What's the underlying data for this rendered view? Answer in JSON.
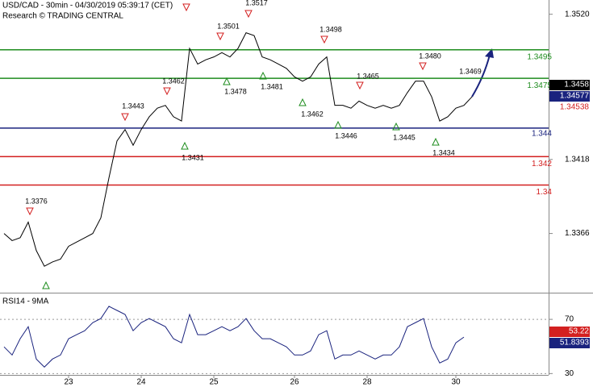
{
  "title": "USD/CAD - 30min - 04/30/2019 05:39:17 (CET)",
  "subtitle": "Research © TRADING CENTRAL",
  "chart_data": [
    {
      "type": "line",
      "color": "#000000",
      "categories": [
        null,
        null,
        null,
        null,
        null,
        null,
        null,
        null,
        "23",
        null,
        null,
        null,
        null,
        null,
        null,
        null,
        null,
        "24",
        null,
        null,
        null,
        null,
        null,
        null,
        null,
        null,
        "25",
        null,
        null,
        null,
        null,
        null,
        null,
        null,
        null,
        null,
        "26",
        null,
        null,
        null,
        null,
        null,
        null,
        null,
        null,
        "28",
        null,
        null,
        null,
        null,
        null,
        null,
        null,
        null,
        null,
        null,
        "30",
        null,
        null,
        null,
        null,
        null,
        null,
        null,
        null,
        null,
        null,
        null
      ],
      "values": [
        1.3366,
        1.3361,
        1.3363,
        1.3374,
        1.3354,
        1.3343,
        1.3346,
        1.3348,
        1.3357,
        1.336,
        1.3363,
        1.3366,
        1.3377,
        1.3405,
        1.3431,
        1.3439,
        1.3428,
        1.3439,
        1.3448,
        1.3454,
        1.3456,
        1.3448,
        1.3445,
        1.3496,
        1.3485,
        1.3488,
        1.349,
        1.3493,
        1.349,
        1.3496,
        1.3507,
        1.3505,
        1.349,
        1.3488,
        1.3485,
        1.3482,
        1.3476,
        1.3473,
        1.3476,
        1.3485,
        1.349,
        1.3456,
        1.3456,
        1.3454,
        1.3459,
        1.3456,
        1.3454,
        1.3456,
        1.3454,
        1.3456,
        1.3465,
        1.3473,
        1.3473,
        1.3462,
        1.3445,
        1.3448,
        1.3454,
        1.3456,
        1.3462,
        null,
        null,
        null,
        null,
        null,
        null,
        null,
        null,
        null
      ],
      "ylim": [
        1.3325,
        1.353
      ],
      "yticks": [
        {
          "value": 1.352,
          "label": "1.3520"
        },
        1.3418,
        1.3366
      ],
      "levels": [
        {
          "value": 1.3495,
          "color": "#1e8c1e"
        },
        {
          "value": 1.3475,
          "color": "#1e8c1e"
        },
        {
          "value": 1.344,
          "color": "#1a237e"
        },
        {
          "value": 1.342,
          "color": "#d32020"
        },
        {
          "value": 1.34,
          "color": "#d32020"
        }
      ],
      "highs": [
        1.3376,
        1.3443,
        1.3462,
        1.3501,
        1.3517,
        1.3498,
        1.3465,
        {
          "value": 1.348,
          "label": "1.3480"
        },
        1.3469
      ],
      "lows": [
        1.3431,
        1.3478,
        1.3481,
        1.3462,
        1.3446,
        1.3445,
        1.3434
      ],
      "readouts": [
        {
          "value": 1.3458,
          "color": "#000000"
        },
        {
          "value": 1.34577,
          "color": "#1a237e"
        },
        {
          "value": 1.34538,
          "color": "#d32020"
        }
      ]
    },
    {
      "type": "line",
      "title": "RSI14 - 9MA",
      "color": "#1a237e",
      "values": [
        49.7,
        43.7,
        55.7,
        64.6,
        40.7,
        34.8,
        40.7,
        43.7,
        55.7,
        58.7,
        61.6,
        67.6,
        70.6,
        79.6,
        76.6,
        73.6,
        61.6,
        67.6,
        70.6,
        67.6,
        64.6,
        55.7,
        52.7,
        73.6,
        58.7,
        58.7,
        61.6,
        64.6,
        61.6,
        64.6,
        70.6,
        61.6,
        55.7,
        55.7,
        52.7,
        49.7,
        43.7,
        43.7,
        46.7,
        58.7,
        61.6,
        40.7,
        43.7,
        43.7,
        46.7,
        43.7,
        40.7,
        43.7,
        43.7,
        49.7,
        64.6,
        67.6,
        70.6,
        49.7,
        37.8,
        40.7,
        52.7,
        56.9,
        null,
        null,
        null,
        null,
        null,
        null,
        null,
        null,
        null,
        null
      ],
      "ylim": [
        29,
        88.5
      ],
      "yticks": [
        70,
        30
      ],
      "readouts": [
        {
          "value": 53.22,
          "color": "#d32020"
        },
        {
          "value": 51.8393,
          "color": "#1a237e"
        }
      ]
    }
  ]
}
